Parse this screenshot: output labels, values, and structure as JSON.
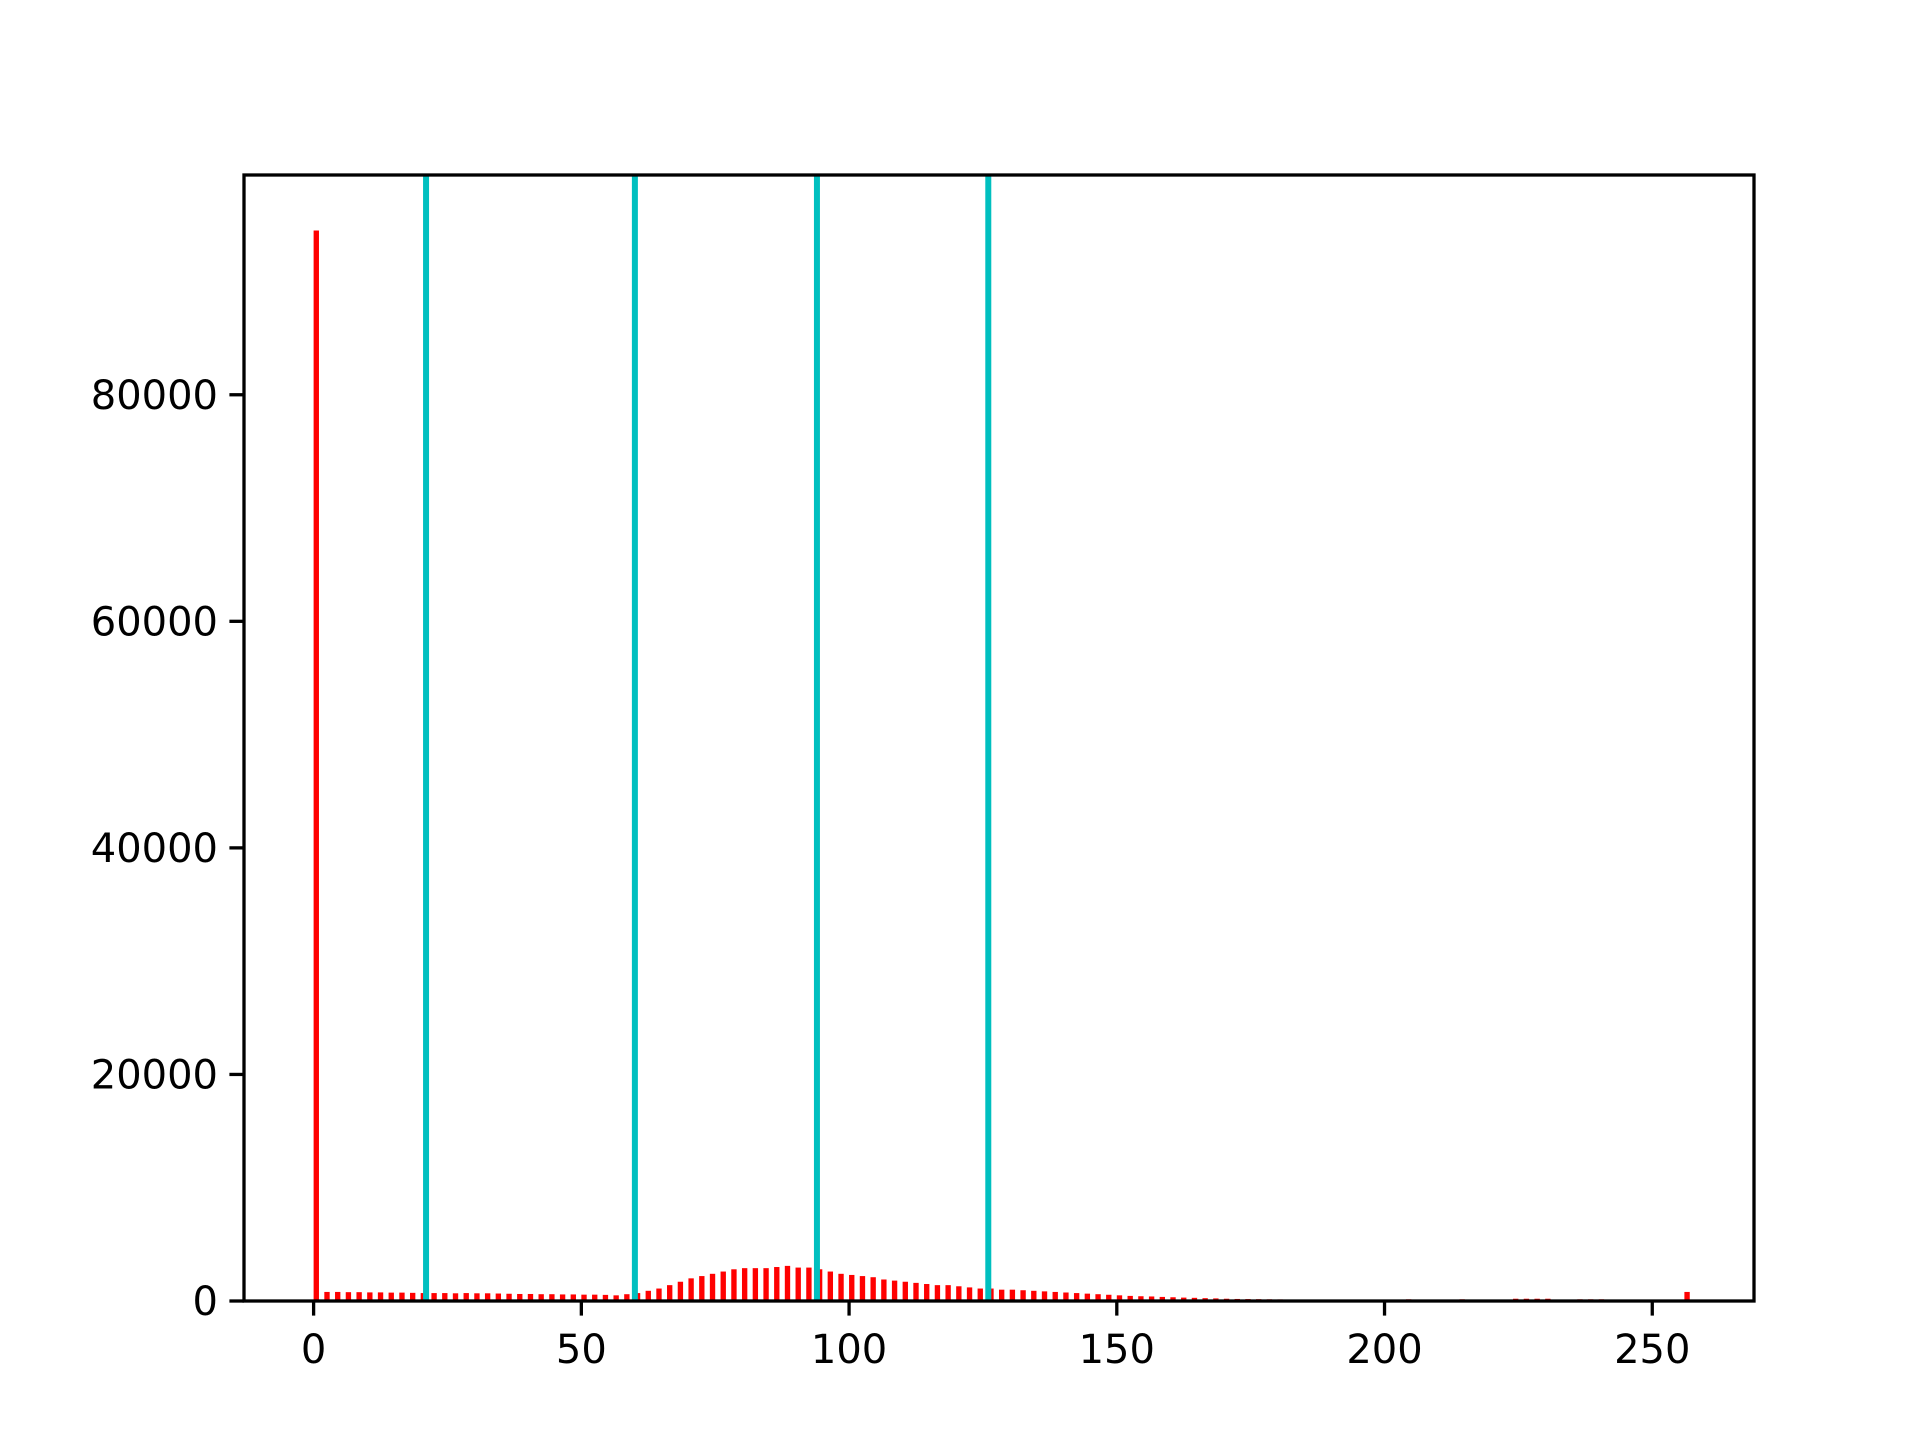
{
  "chart_data": {
    "type": "histogram",
    "bins": [
      0,
      2,
      4,
      6,
      8,
      10,
      12,
      14,
      16,
      18,
      20,
      22,
      24,
      26,
      28,
      30,
      32,
      34,
      36,
      38,
      40,
      42,
      44,
      46,
      48,
      50,
      52,
      54,
      56,
      58,
      60,
      62,
      64,
      66,
      68,
      70,
      72,
      74,
      76,
      78,
      80,
      82,
      84,
      86,
      88,
      90,
      92,
      94,
      96,
      98,
      100,
      102,
      104,
      106,
      108,
      110,
      112,
      114,
      116,
      118,
      120,
      122,
      124,
      126,
      128,
      130,
      132,
      134,
      136,
      138,
      140,
      142,
      144,
      146,
      148,
      150,
      152,
      154,
      156,
      158,
      160,
      162,
      164,
      166,
      168,
      170,
      172,
      174,
      176,
      178,
      180,
      182,
      184,
      186,
      188,
      190,
      192,
      194,
      196,
      198,
      200,
      202,
      204,
      206,
      208,
      210,
      212,
      214,
      216,
      218,
      220,
      222,
      224,
      226,
      228,
      230,
      232,
      234,
      236,
      238,
      240,
      242,
      244,
      246,
      248,
      250,
      252,
      254,
      256,
      258
    ],
    "counts": [
      94500,
      800,
      800,
      780,
      780,
      760,
      760,
      740,
      740,
      720,
      700,
      700,
      700,
      680,
      700,
      680,
      680,
      660,
      640,
      620,
      620,
      600,
      600,
      580,
      580,
      560,
      560,
      540,
      500,
      600,
      700,
      900,
      1100,
      1400,
      1700,
      2000,
      2200,
      2400,
      2600,
      2800,
      2900,
      2900,
      2900,
      3000,
      3100,
      2950,
      2950,
      2800,
      2600,
      2400,
      2300,
      2200,
      2100,
      1900,
      1800,
      1700,
      1600,
      1500,
      1400,
      1400,
      1300,
      1200,
      1100,
      1100,
      1000,
      1000,
      950,
      900,
      850,
      800,
      750,
      700,
      650,
      600,
      550,
      500,
      450,
      420,
      400,
      360,
      330,
      300,
      280,
      250,
      230,
      200,
      180,
      170,
      160,
      150,
      140,
      130,
      120,
      110,
      100,
      90,
      80,
      70,
      60,
      50,
      50,
      50,
      150,
      50,
      40,
      40,
      40,
      150,
      40,
      40,
      40,
      40,
      200,
      200,
      200,
      200,
      100,
      40,
      150,
      150,
      150,
      40,
      30,
      30,
      30,
      30,
      30,
      30,
      800
    ],
    "color": "#ff0000",
    "rwidth": 0.5,
    "vlines": {
      "x": [
        21,
        60,
        94,
        126
      ],
      "color": "#00bfbf"
    },
    "xlim": [
      -13,
      269
    ],
    "xticks": [
      0,
      50,
      100,
      150,
      200,
      250
    ],
    "ylim": [
      0,
      99400
    ],
    "yticks": [
      0,
      20000,
      40000,
      60000,
      80000
    ]
  }
}
